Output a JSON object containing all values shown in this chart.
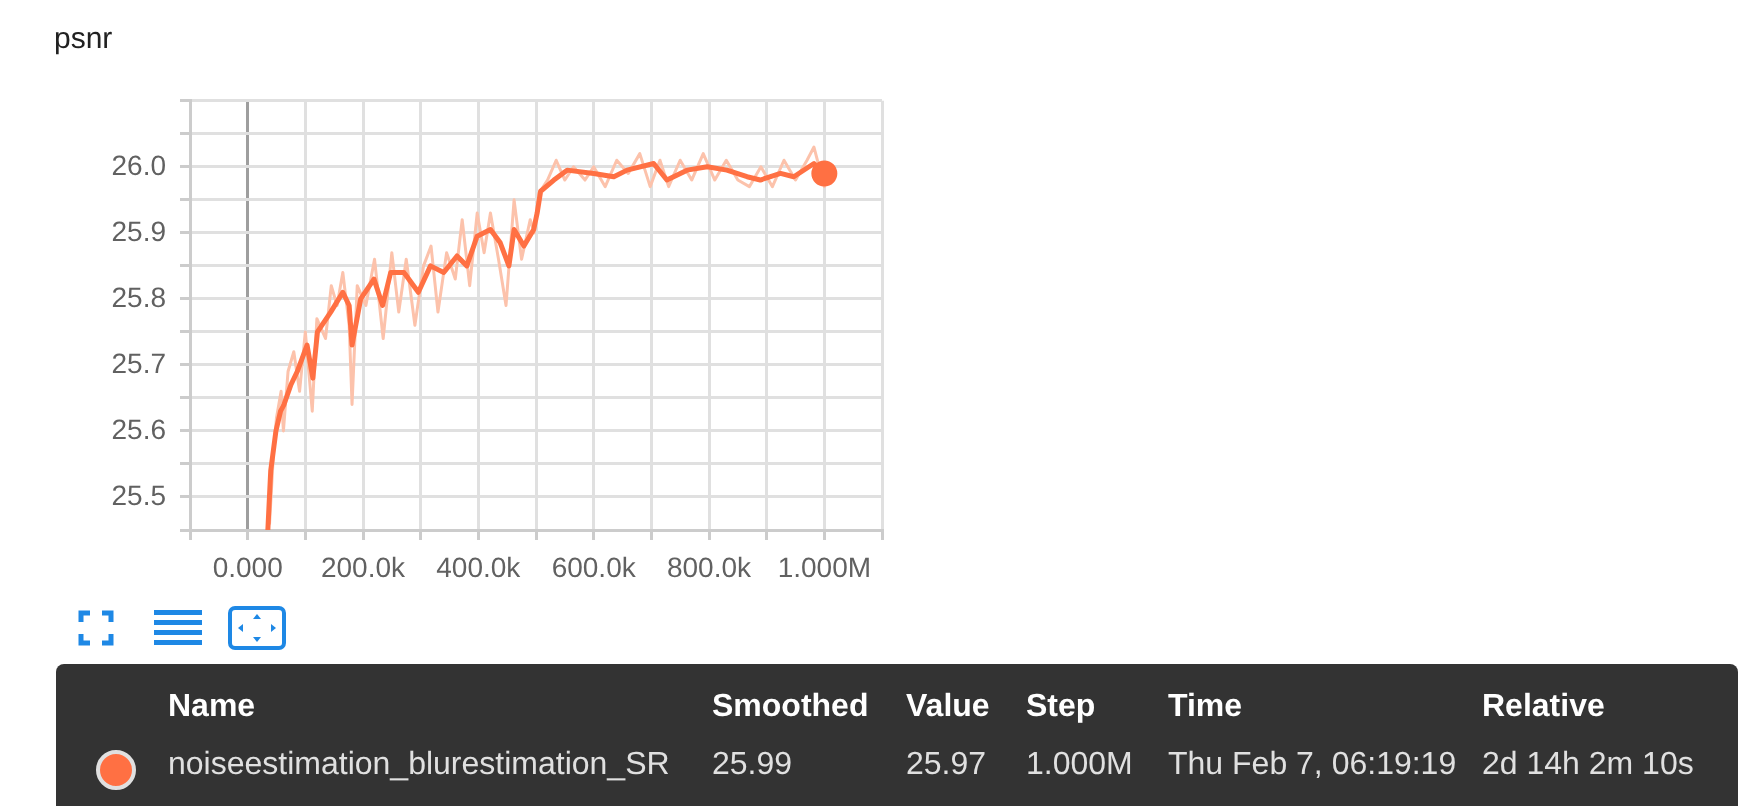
{
  "chart_data": {
    "type": "line",
    "title": "psnr",
    "xlim": [
      -100000,
      1100000
    ],
    "xticks": [
      {
        "value": -100000,
        "label": null
      },
      {
        "value": 0,
        "label": "0.000"
      },
      {
        "value": 100000,
        "label": null
      },
      {
        "value": 200000,
        "label": "200.0k"
      },
      {
        "value": 300000,
        "label": null
      },
      {
        "value": 400000,
        "label": "400.0k"
      },
      {
        "value": 500000,
        "label": null
      },
      {
        "value": 600000,
        "label": "600.0k"
      },
      {
        "value": 700000,
        "label": null
      },
      {
        "value": 800000,
        "label": "800.0k"
      },
      {
        "value": 900000,
        "label": null
      },
      {
        "value": 1000000,
        "label": "1.000M"
      },
      {
        "value": 1100000,
        "label": null
      }
    ],
    "ylim": [
      25.45,
      26.1
    ],
    "yticks": [
      {
        "value": 25.45,
        "label": null
      },
      25.5,
      {
        "value": 25.55,
        "label": null
      },
      25.6,
      {
        "value": 25.65,
        "label": null
      },
      25.7,
      {
        "value": 25.75,
        "label": null
      },
      25.8,
      {
        "value": 25.85,
        "label": null
      },
      25.9,
      {
        "value": 25.95,
        "label": null
      },
      {
        "value": 26,
        "label": "26.0"
      },
      {
        "value": 26.05,
        "label": null
      },
      {
        "value": 26.1,
        "label": null
      }
    ],
    "grid": true,
    "legend": "bottom",
    "series": [
      {
        "type": "line",
        "color": "#fcc2ab",
        "x": [
          38000,
          45000,
          50000,
          58000,
          62000,
          70000,
          80000,
          90000,
          100000,
          112000,
          120000,
          135000,
          145000,
          155000,
          165000,
          176000,
          181000,
          190000,
          205000,
          220000,
          235000,
          250000,
          262000,
          275000,
          290000,
          305000,
          318000,
          330000,
          345000,
          360000,
          372000,
          385000,
          398000,
          410000,
          421000,
          435000,
          448000,
          462000,
          475000,
          490000,
          497000,
          505000,
          520000,
          535000,
          550000,
          565000,
          585000,
          600000,
          620000,
          640000,
          660000,
          680000,
          698000,
          715000,
          730000,
          750000,
          770000,
          790000,
          810000,
          830000,
          850000,
          870000,
          890000,
          910000,
          930000,
          950000,
          970000,
          982000,
          1000000
        ],
        "values": [
          25.46,
          25.57,
          25.62,
          25.66,
          25.6,
          25.69,
          25.72,
          25.66,
          25.75,
          25.63,
          25.77,
          25.74,
          25.82,
          25.79,
          25.84,
          25.76,
          25.64,
          25.82,
          25.79,
          25.86,
          25.74,
          25.87,
          25.78,
          25.86,
          25.76,
          25.85,
          25.88,
          25.78,
          25.87,
          25.83,
          25.92,
          25.82,
          25.93,
          25.87,
          25.93,
          25.86,
          25.79,
          25.95,
          25.86,
          25.92,
          25.9,
          25.96,
          25.98,
          26.01,
          25.98,
          26.0,
          25.98,
          26.0,
          25.97,
          26.01,
          25.99,
          26.02,
          25.97,
          26.01,
          25.97,
          26.01,
          25.98,
          26.02,
          25.98,
          26.01,
          25.98,
          25.97,
          26.0,
          25.97,
          26.01,
          25.98,
          26.01,
          26.03,
          25.97
        ]
      },
      {
        "type": "line",
        "name": "noiseestimation_blurestimation_SR",
        "color": "#ff7043",
        "x": [
          35000,
          40000,
          49000,
          57000,
          63000,
          75000,
          86000,
          103000,
          113000,
          121000,
          144000,
          165000,
          176000,
          181000,
          196000,
          219000,
          234000,
          248000,
          271000,
          296000,
          317000,
          340000,
          363000,
          380000,
          398000,
          421000,
          438000,
          453000,
          462000,
          479000,
          496000,
          502000,
          508000,
          531000,
          554000,
          600000,
          635000,
          658000,
          704000,
          727000,
          762000,
          797000,
          831000,
          866000,
          889000,
          924000,
          947000,
          982000,
          1000000
        ],
        "values": [
          25.45,
          25.54,
          25.6,
          25.63,
          25.64,
          25.67,
          25.69,
          25.73,
          25.68,
          25.75,
          25.78,
          25.81,
          25.79,
          25.73,
          25.8,
          25.83,
          25.79,
          25.84,
          25.84,
          25.81,
          25.85,
          25.84,
          25.865,
          25.85,
          25.895,
          25.905,
          25.885,
          25.85,
          25.905,
          25.88,
          25.905,
          25.93,
          25.963,
          25.98,
          25.995,
          25.99,
          25.985,
          25.995,
          26.005,
          25.98,
          25.995,
          26.0,
          25.995,
          25.985,
          25.98,
          25.99,
          25.985,
          26.005,
          25.99
        ]
      },
      {
        "type": "scatter",
        "marker": "circle",
        "color": "#ff7043",
        "x": [
          1000000
        ],
        "values": [
          25.99
        ]
      }
    ],
    "annotations": [
      "Name",
      "Smoothed",
      "Value",
      "Step",
      "Time",
      "Relative",
      "25.99",
      "25.97",
      "1.000M",
      "Thu Feb 7, 06:19:19",
      "2d 14h 2m 10s"
    ]
  }
}
